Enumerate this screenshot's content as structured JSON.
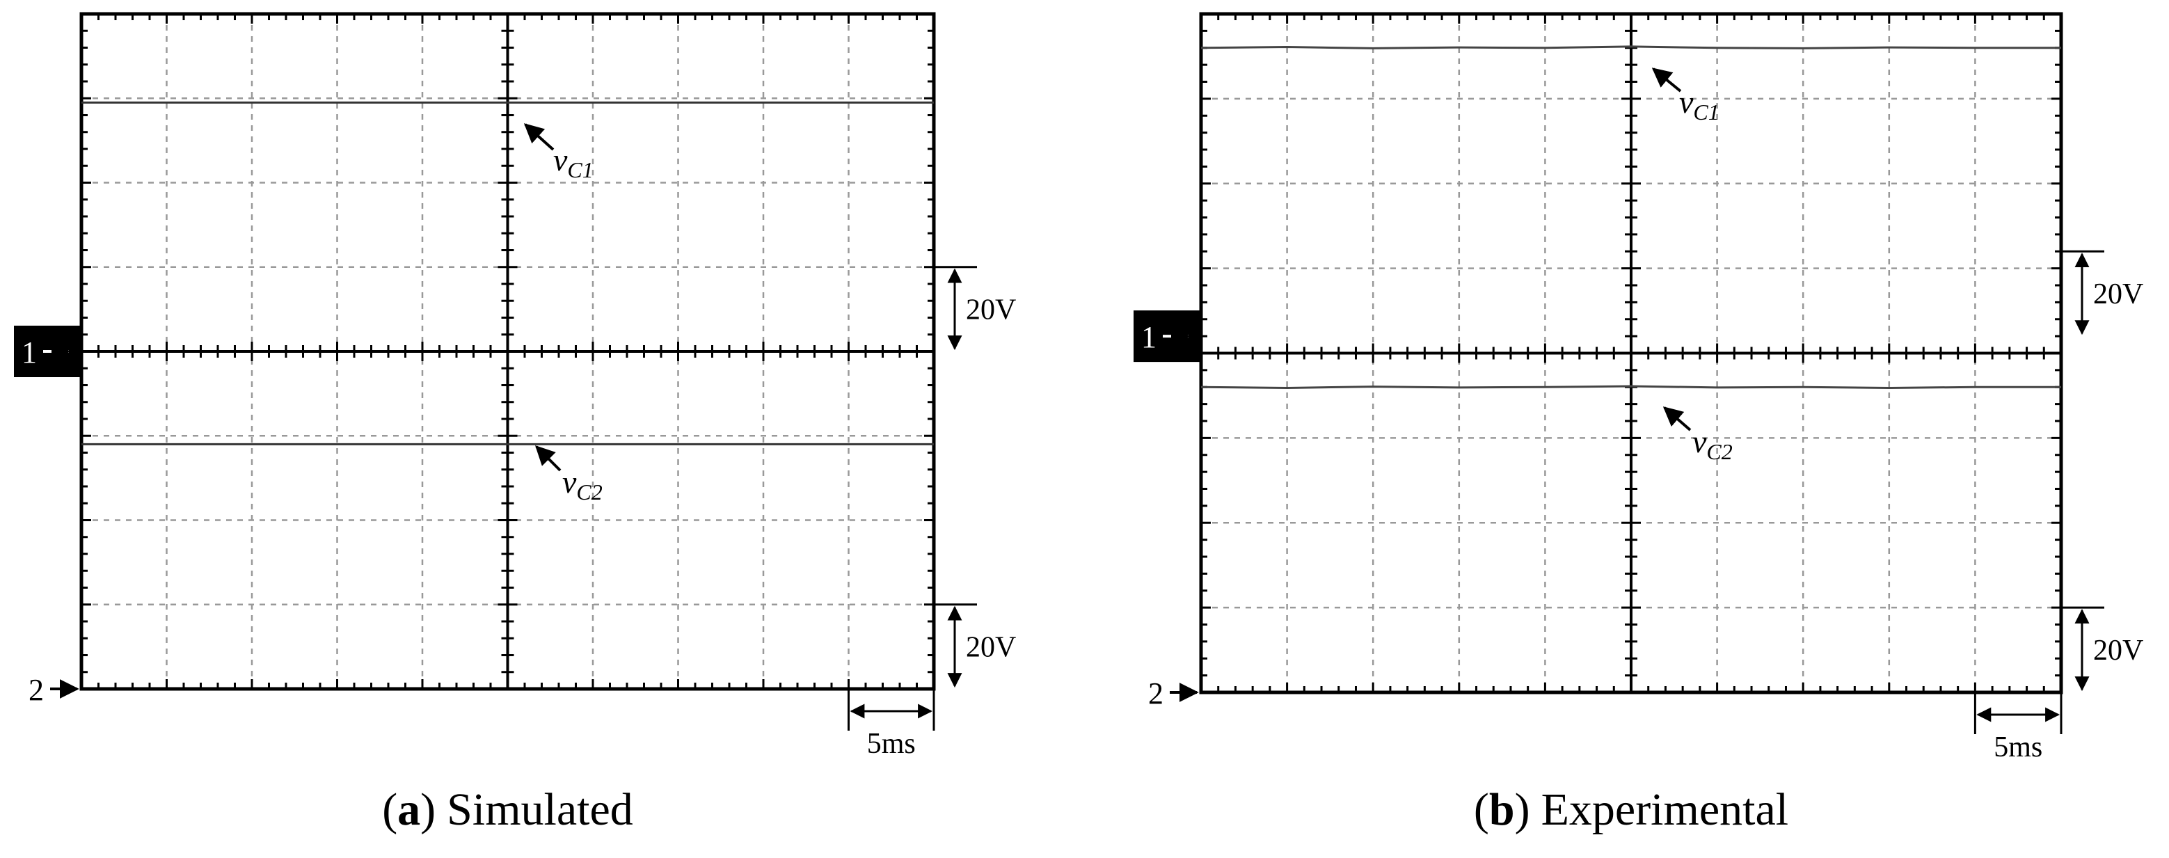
{
  "chart_data": [
    {
      "type": "line",
      "caption": {
        "open": "(",
        "label": "a",
        "close": ")",
        "text": "Simulated"
      },
      "xlim": [
        0,
        50
      ],
      "ms_per_div": 5,
      "volts_per_div": 20,
      "x_scale_label": "5ms",
      "x": [
        0,
        5,
        10,
        15,
        20,
        25,
        30,
        35,
        40,
        45,
        50
      ],
      "channels": [
        {
          "label": "1",
          "offset_div": 4,
          "scale_label": "20V"
        },
        {
          "label": "2",
          "offset_div": 0,
          "scale_label": "20V"
        }
      ],
      "series": [
        {
          "channel": 0,
          "color": "#333333",
          "annotation": {
            "main": "v",
            "sub": "C1"
          },
          "values": [
            59,
            59,
            59,
            59,
            59,
            59,
            59,
            59,
            59,
            59,
            59
          ]
        },
        {
          "channel": 1,
          "color": "#333333",
          "annotation": {
            "main": "v",
            "sub": "C2"
          },
          "values": [
            58,
            58,
            58,
            58,
            58,
            58,
            58,
            58,
            58,
            58,
            58
          ]
        }
      ]
    },
    {
      "type": "line",
      "caption": {
        "open": "(",
        "label": "b",
        "close": ")",
        "text": "Experimental"
      },
      "xlim": [
        0,
        50
      ],
      "ms_per_div": 5,
      "volts_per_div": 20,
      "x_scale_label": "5ms",
      "x": [
        0,
        5,
        10,
        15,
        20,
        25,
        30,
        35,
        40,
        45,
        50
      ],
      "channels": [
        {
          "label": "1",
          "offset_div": 4.2,
          "scale_label": "20V"
        },
        {
          "label": "2",
          "offset_div": 0,
          "scale_label": "20V"
        }
      ],
      "series": [
        {
          "channel": 0,
          "color": "#444444",
          "annotation": {
            "main": "v",
            "sub": "C1"
          },
          "values": [
            68,
            68.2,
            67.9,
            68.1,
            68,
            68.3,
            68,
            67.9,
            68.1,
            68,
            68
          ]
        },
        {
          "channel": 1,
          "color": "#444444",
          "annotation": {
            "main": "v",
            "sub": "C2"
          },
          "values": [
            72,
            71.8,
            72.1,
            71.9,
            72,
            72.2,
            71.9,
            72,
            71.8,
            72,
            72
          ]
        }
      ]
    }
  ]
}
